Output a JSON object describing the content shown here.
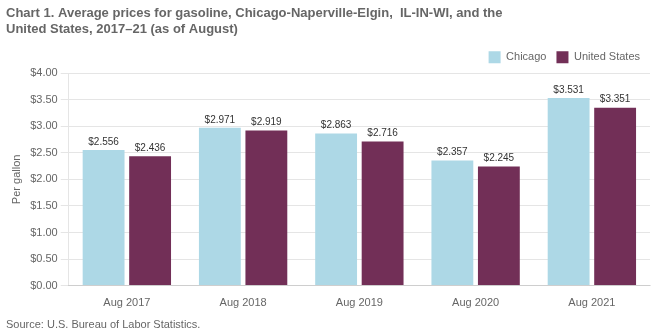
{
  "chart_data": {
    "type": "bar",
    "title": "Chart 1. Average prices for gasoline, Chicago-Naperville-Elgin,  IL-IN-WI, and the\nUnited States, 2017–21 (as of August)",
    "ylabel": "Per gallon",
    "annotations": [
      "Source: U.S. Bureau of Labor Statistics."
    ],
    "categories": [
      "Aug 2017",
      "Aug 2018",
      "Aug 2019",
      "Aug 2020",
      "Aug 2021"
    ],
    "series": [
      {
        "name": "Chicago",
        "color": "#ADD8E6",
        "values": [
          2.556,
          2.971,
          2.863,
          2.357,
          3.531
        ],
        "value_labels": [
          "$2.556",
          "$2.971",
          "$2.863",
          "$2.357",
          "$3.531"
        ]
      },
      {
        "name": "United States",
        "color": "#722F57",
        "values": [
          2.436,
          2.919,
          2.716,
          2.245,
          3.351
        ],
        "value_labels": [
          "$2.436",
          "$2.919",
          "$2.716",
          "$2.245",
          "$3.351"
        ]
      }
    ],
    "ylim": [
      0.0,
      4.0
    ],
    "yticks": [
      {
        "value": 0.0,
        "label": "$0.00"
      },
      {
        "value": 0.5,
        "label": "$0.50"
      },
      {
        "value": 1.0,
        "label": "$1.00"
      },
      {
        "value": 1.5,
        "label": "$1.50"
      },
      {
        "value": 2.0,
        "label": "$2.00"
      },
      {
        "value": 2.5,
        "label": "$2.50"
      },
      {
        "value": 3.0,
        "label": "$3.00"
      },
      {
        "value": 3.5,
        "label": "$3.50"
      },
      {
        "value": 4.0,
        "label": "$4.00"
      }
    ],
    "grid": true,
    "legend": "top-right",
    "data_labels": true
  }
}
